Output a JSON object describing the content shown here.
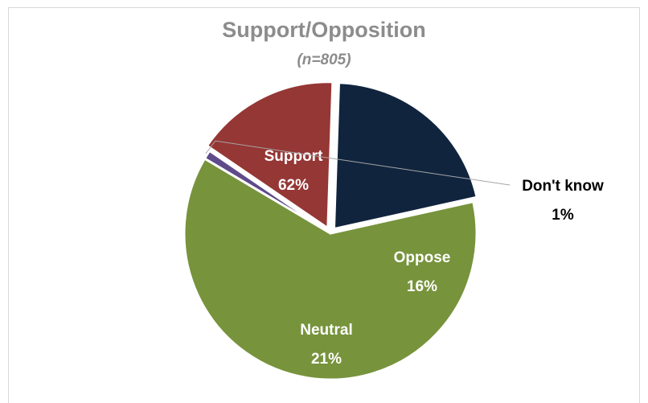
{
  "chart_data": {
    "type": "pie",
    "title": "Support/Opposition",
    "subtitle": "(n=805)",
    "slices": [
      {
        "name": "Support",
        "value": 62,
        "label": "62%",
        "color": "#77933c",
        "label_color": "#ffffff",
        "label_placement": "inside"
      },
      {
        "name": "Don't know",
        "value": 1,
        "label": "1%",
        "color": "#5f4b8b",
        "label_color": "#000000",
        "label_placement": "outside"
      },
      {
        "name": "Oppose",
        "value": 16,
        "label": "16%",
        "color": "#953735",
        "label_color": "#ffffff",
        "label_placement": "inside",
        "exploded": true
      },
      {
        "name": "Neutral",
        "value": 21,
        "label": "21%",
        "color": "#10243e",
        "label_color": "#ffffff",
        "label_placement": "inside",
        "exploded": true
      }
    ],
    "legend": "none"
  }
}
